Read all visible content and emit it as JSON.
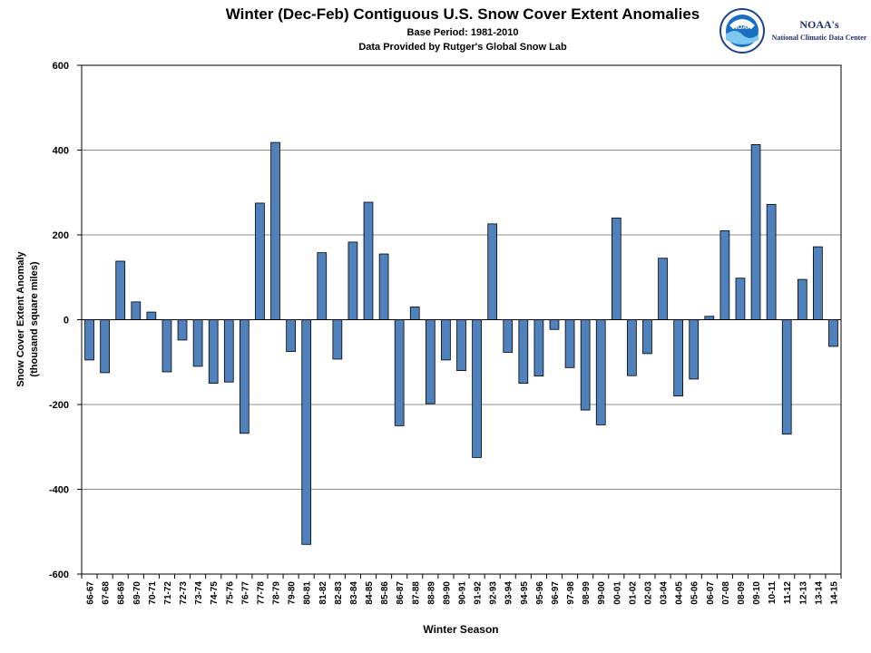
{
  "chart_data": {
    "type": "bar",
    "title": "Winter (Dec-Feb) Contiguous U.S. Snow Cover Extent Anomalies",
    "subtitle": [
      "Base Period: 1981-2010",
      "Data Provided by Rutger's Global Snow Lab"
    ],
    "xlabel": "Winter Season",
    "ylabel": [
      "Snow Cover Extent Anomaly",
      "(thousand square miles)"
    ],
    "ylim": [
      -600,
      600
    ],
    "yticks": [
      -600,
      -400,
      -200,
      0,
      200,
      400,
      600
    ],
    "grid": true,
    "bar_color": "#4f81bd",
    "categories": [
      "66-67",
      "67-68",
      "68-69",
      "69-70",
      "70-71",
      "71-72",
      "72-73",
      "73-74",
      "74-75",
      "75-76",
      "76-77",
      "77-78",
      "78-79",
      "79-80",
      "80-81",
      "81-82",
      "82-83",
      "83-84",
      "84-85",
      "85-86",
      "86-87",
      "87-88",
      "88-89",
      "89-90",
      "90-91",
      "91-92",
      "92-93",
      "93-94",
      "94-95",
      "95-96",
      "96-97",
      "97-98",
      "98-99",
      "99-00",
      "00-01",
      "01-02",
      "02-03",
      "03-04",
      "04-05",
      "05-06",
      "06-07",
      "07-08",
      "08-09",
      "09-10",
      "10-11",
      "11-12",
      "12-13",
      "13-14",
      "14-15"
    ],
    "values": [
      -95,
      -125,
      138,
      42,
      18,
      -123,
      -48,
      -110,
      -150,
      -147,
      -268,
      275,
      418,
      -75,
      -530,
      158,
      -93,
      183,
      277,
      155,
      -250,
      30,
      -198,
      -95,
      -120,
      -325,
      226,
      -77,
      -150,
      -133,
      -23,
      -113,
      -213,
      -248,
      240,
      -132,
      -80,
      145,
      -180,
      -140,
      8,
      210,
      98,
      413,
      272,
      -270,
      95,
      172,
      -63
    ]
  },
  "logo": {
    "org": "NOAA",
    "line1": "NOAA's",
    "line2": "National Climatic Data Center"
  }
}
